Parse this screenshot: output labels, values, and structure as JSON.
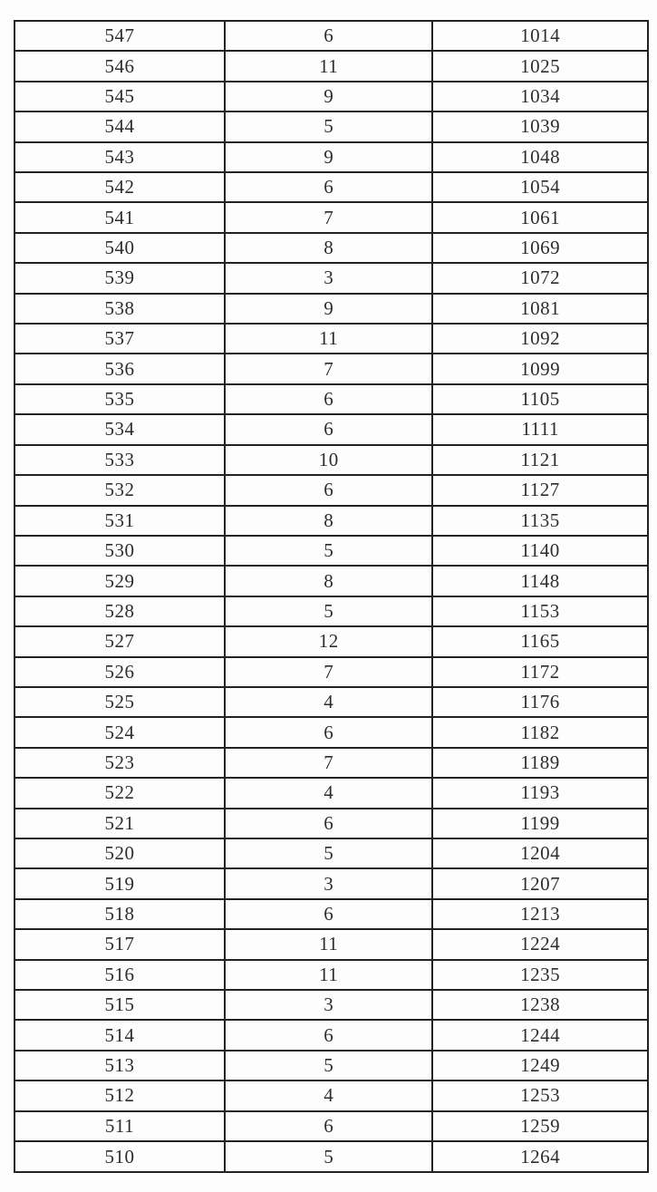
{
  "colors": {
    "page_background": "#fdfdfd",
    "table_border": "#222222",
    "text": "#2d2d2d"
  },
  "table": {
    "rows": [
      [
        "547",
        "6",
        "1014"
      ],
      [
        "546",
        "11",
        "1025"
      ],
      [
        "545",
        "9",
        "1034"
      ],
      [
        "544",
        "5",
        "1039"
      ],
      [
        "543",
        "9",
        "1048"
      ],
      [
        "542",
        "6",
        "1054"
      ],
      [
        "541",
        "7",
        "1061"
      ],
      [
        "540",
        "8",
        "1069"
      ],
      [
        "539",
        "3",
        "1072"
      ],
      [
        "538",
        "9",
        "1081"
      ],
      [
        "537",
        "11",
        "1092"
      ],
      [
        "536",
        "7",
        "1099"
      ],
      [
        "535",
        "6",
        "1105"
      ],
      [
        "534",
        "6",
        "1111"
      ],
      [
        "533",
        "10",
        "1121"
      ],
      [
        "532",
        "6",
        "1127"
      ],
      [
        "531",
        "8",
        "1135"
      ],
      [
        "530",
        "5",
        "1140"
      ],
      [
        "529",
        "8",
        "1148"
      ],
      [
        "528",
        "5",
        "1153"
      ],
      [
        "527",
        "12",
        "1165"
      ],
      [
        "526",
        "7",
        "1172"
      ],
      [
        "525",
        "4",
        "1176"
      ],
      [
        "524",
        "6",
        "1182"
      ],
      [
        "523",
        "7",
        "1189"
      ],
      [
        "522",
        "4",
        "1193"
      ],
      [
        "521",
        "6",
        "1199"
      ],
      [
        "520",
        "5",
        "1204"
      ],
      [
        "519",
        "3",
        "1207"
      ],
      [
        "518",
        "6",
        "1213"
      ],
      [
        "517",
        "11",
        "1224"
      ],
      [
        "516",
        "11",
        "1235"
      ],
      [
        "515",
        "3",
        "1238"
      ],
      [
        "514",
        "6",
        "1244"
      ],
      [
        "513",
        "5",
        "1249"
      ],
      [
        "512",
        "4",
        "1253"
      ],
      [
        "511",
        "6",
        "1259"
      ],
      [
        "510",
        "5",
        "1264"
      ]
    ]
  }
}
